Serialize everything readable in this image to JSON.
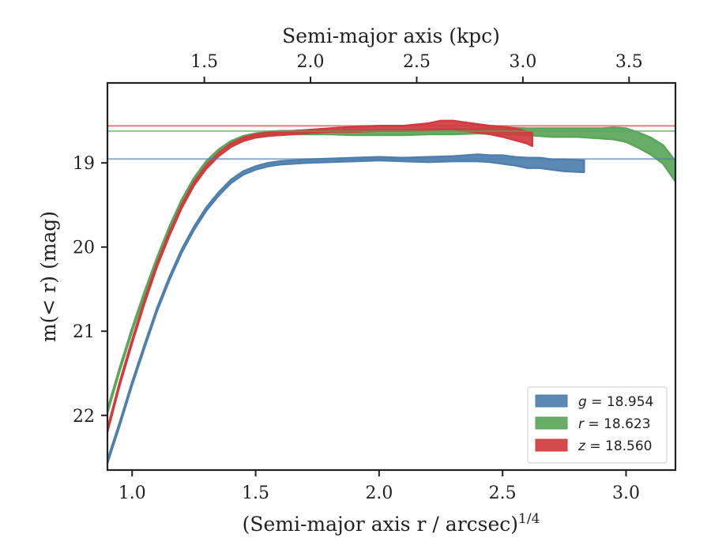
{
  "chart_data": {
    "type": "line",
    "xlabel_bottom": "(Semi-major axis r / arcsec)",
    "xlabel_bottom_superscript": "1/4",
    "xlabel_top": "Semi-major axis (kpc)",
    "ylabel": "m(< r) (mag)",
    "xlim": [
      0.9,
      3.2
    ],
    "ylim": [
      22.65,
      18.05
    ],
    "y_inverted": true,
    "x_ticks": [
      1.0,
      1.5,
      2.0,
      2.5,
      3.0
    ],
    "x_tick_labels": [
      "1.0",
      "1.5",
      "2.0",
      "2.5",
      "3.0"
    ],
    "y_ticks": [
      19,
      20,
      21,
      22
    ],
    "y_tick_labels": [
      "19",
      "20",
      "21",
      "22"
    ],
    "top_axis_ticks": [
      {
        "at_x": 1.2923,
        "label": "1.5"
      },
      {
        "at_x": 1.7223,
        "label": "2.0"
      },
      {
        "at_x": 2.1523,
        "label": "2.5"
      },
      {
        "at_x": 2.5823,
        "label": "3.0"
      },
      {
        "at_x": 3.0123,
        "label": "3.5"
      }
    ],
    "grid": false,
    "legend_position": "lower right",
    "series": [
      {
        "name": "g = 18.954",
        "legend_var": "g",
        "legend_value": "18.954",
        "color": "#4e7fae",
        "asymptote": 18.954,
        "x": [
          0.9,
          0.95,
          1.0,
          1.05,
          1.1,
          1.15,
          1.2,
          1.25,
          1.3,
          1.35,
          1.4,
          1.45,
          1.5,
          1.55,
          1.6,
          1.7,
          1.8,
          1.9,
          2.0,
          2.1,
          2.2,
          2.3,
          2.4,
          2.45,
          2.5,
          2.55,
          2.6,
          2.65,
          2.7,
          2.75,
          2.83
        ],
        "y": [
          22.55,
          22.1,
          21.62,
          21.18,
          20.75,
          20.38,
          20.05,
          19.78,
          19.55,
          19.37,
          19.22,
          19.12,
          19.06,
          19.02,
          19.0,
          18.98,
          18.97,
          18.96,
          18.95,
          18.96,
          18.96,
          18.95,
          18.94,
          18.95,
          18.96,
          18.98,
          19.0,
          19.0,
          19.02,
          19.03,
          19.04
        ],
        "band_width": [
          0.02,
          0.02,
          0.02,
          0.02,
          0.02,
          0.02,
          0.02,
          0.02,
          0.02,
          0.02,
          0.02,
          0.02,
          0.02,
          0.02,
          0.02,
          0.02,
          0.02,
          0.02,
          0.02,
          0.02,
          0.03,
          0.03,
          0.04,
          0.04,
          0.05,
          0.05,
          0.06,
          0.06,
          0.06,
          0.07,
          0.07
        ]
      },
      {
        "name": "r = 18.623",
        "legend_var": "r",
        "legend_value": "18.623",
        "color": "#5aa65a",
        "asymptote": 18.623,
        "x": [
          0.9,
          0.95,
          1.0,
          1.05,
          1.1,
          1.15,
          1.2,
          1.25,
          1.3,
          1.35,
          1.4,
          1.45,
          1.5,
          1.55,
          1.6,
          1.7,
          1.8,
          1.9,
          2.0,
          2.1,
          2.2,
          2.3,
          2.4,
          2.5,
          2.6,
          2.7,
          2.8,
          2.9,
          2.95,
          3.0,
          3.05,
          3.1,
          3.15,
          3.2
        ],
        "y": [
          21.95,
          21.45,
          20.98,
          20.55,
          20.15,
          19.78,
          19.46,
          19.2,
          19.0,
          18.86,
          18.76,
          18.7,
          18.67,
          18.65,
          18.64,
          18.64,
          18.64,
          18.64,
          18.64,
          18.64,
          18.63,
          18.63,
          18.62,
          18.62,
          18.63,
          18.64,
          18.64,
          18.65,
          18.65,
          18.67,
          18.73,
          18.8,
          18.9,
          19.1
        ],
        "band_width": [
          0.02,
          0.02,
          0.02,
          0.02,
          0.02,
          0.02,
          0.02,
          0.02,
          0.02,
          0.02,
          0.02,
          0.02,
          0.02,
          0.02,
          0.02,
          0.02,
          0.02,
          0.03,
          0.03,
          0.03,
          0.03,
          0.03,
          0.03,
          0.04,
          0.04,
          0.05,
          0.05,
          0.06,
          0.07,
          0.08,
          0.09,
          0.1,
          0.11,
          0.12
        ]
      },
      {
        "name": "z = 18.560",
        "legend_var": "z",
        "legend_value": "18.560",
        "color": "#d03b3e",
        "asymptote": 18.56,
        "x": [
          0.9,
          0.95,
          1.0,
          1.05,
          1.1,
          1.15,
          1.2,
          1.25,
          1.3,
          1.35,
          1.4,
          1.45,
          1.5,
          1.55,
          1.6,
          1.7,
          1.8,
          1.9,
          2.0,
          2.1,
          2.2,
          2.25,
          2.3,
          2.35,
          2.4,
          2.45,
          2.5,
          2.55,
          2.6,
          2.62
        ],
        "y": [
          22.18,
          21.62,
          21.12,
          20.65,
          20.22,
          19.85,
          19.52,
          19.25,
          19.05,
          18.9,
          18.79,
          18.72,
          18.68,
          18.66,
          18.65,
          18.63,
          18.61,
          18.6,
          18.59,
          18.59,
          18.57,
          18.55,
          18.55,
          18.57,
          18.59,
          18.61,
          18.63,
          18.66,
          18.7,
          18.72
        ],
        "band_width": [
          0.02,
          0.02,
          0.02,
          0.02,
          0.02,
          0.02,
          0.02,
          0.02,
          0.02,
          0.02,
          0.02,
          0.02,
          0.02,
          0.02,
          0.02,
          0.02,
          0.02,
          0.03,
          0.03,
          0.03,
          0.04,
          0.05,
          0.05,
          0.05,
          0.05,
          0.05,
          0.06,
          0.07,
          0.07,
          0.08
        ]
      }
    ]
  }
}
